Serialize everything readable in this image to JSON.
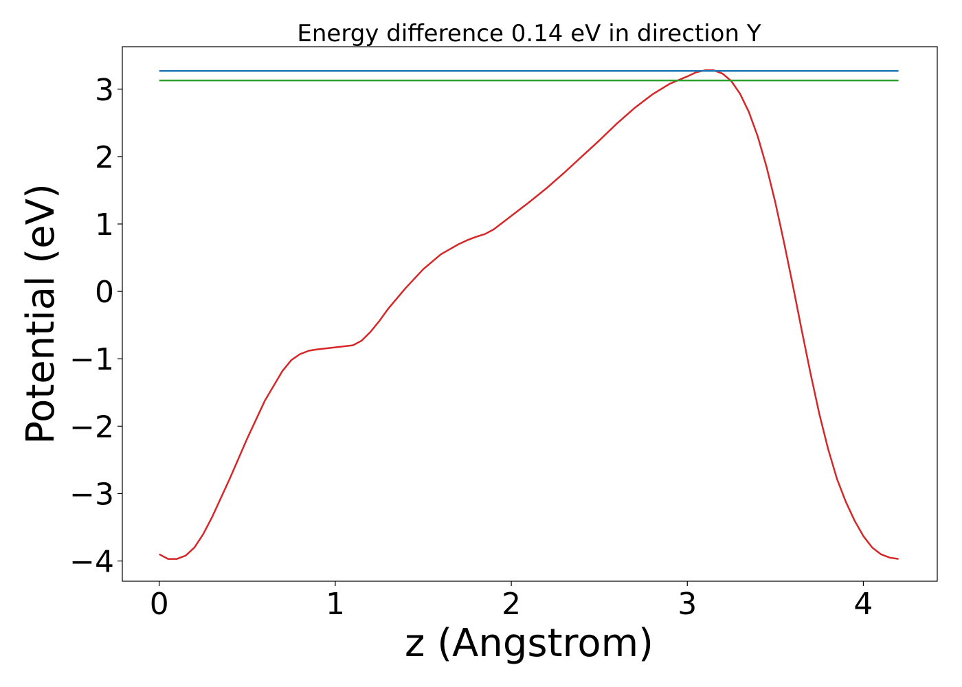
{
  "chart_data": {
    "type": "line",
    "title": "Energy difference 0.14 eV in direction Y",
    "xlabel": "z (Angstrom)",
    "ylabel": "Potential (eV)",
    "xlim": [
      -0.21,
      4.42
    ],
    "ylim": [
      -4.3,
      3.63
    ],
    "xticks": [
      0,
      1,
      2,
      3,
      4
    ],
    "xtick_labels": [
      "0",
      "1",
      "2",
      "3",
      "4"
    ],
    "yticks": [
      -4,
      -3,
      -2,
      -1,
      0,
      1,
      2,
      3
    ],
    "ytick_labels": [
      "−4",
      "−3",
      "−2",
      "−1",
      "0",
      "1",
      "2",
      "3"
    ],
    "grid": false,
    "series": [
      {
        "color": "#d62728",
        "x": [
          0.0,
          0.05,
          0.1,
          0.15,
          0.2,
          0.25,
          0.3,
          0.4,
          0.5,
          0.6,
          0.7,
          0.75,
          0.8,
          0.85,
          0.9,
          1.0,
          1.1,
          1.15,
          1.2,
          1.25,
          1.3,
          1.4,
          1.5,
          1.6,
          1.7,
          1.75,
          1.8,
          1.85,
          1.9,
          1.95,
          2.0,
          2.1,
          2.2,
          2.3,
          2.4,
          2.5,
          2.6,
          2.7,
          2.8,
          2.9,
          3.0,
          3.05,
          3.1,
          3.15,
          3.2,
          3.25,
          3.3,
          3.35,
          3.4,
          3.45,
          3.5,
          3.55,
          3.6,
          3.65,
          3.7,
          3.75,
          3.8,
          3.85,
          3.9,
          3.95,
          4.0,
          4.05,
          4.1,
          4.15,
          4.2
        ],
        "y": [
          -3.9,
          -3.97,
          -3.97,
          -3.92,
          -3.8,
          -3.6,
          -3.35,
          -2.78,
          -2.18,
          -1.62,
          -1.18,
          -1.02,
          -0.93,
          -0.88,
          -0.86,
          -0.83,
          -0.8,
          -0.73,
          -0.6,
          -0.44,
          -0.26,
          0.05,
          0.33,
          0.55,
          0.7,
          0.76,
          0.81,
          0.85,
          0.92,
          1.02,
          1.12,
          1.32,
          1.53,
          1.76,
          2.0,
          2.24,
          2.49,
          2.72,
          2.92,
          3.08,
          3.19,
          3.25,
          3.28,
          3.28,
          3.23,
          3.12,
          2.93,
          2.66,
          2.3,
          1.85,
          1.32,
          0.72,
          0.08,
          -0.58,
          -1.22,
          -1.82,
          -2.34,
          -2.78,
          -3.12,
          -3.4,
          -3.63,
          -3.8,
          -3.9,
          -3.95,
          -3.97
        ]
      },
      {
        "color": "#1f77b4",
        "x": [
          0.0,
          4.2
        ],
        "y": [
          3.27,
          3.27
        ]
      },
      {
        "color": "#2ca02c",
        "x": [
          0.0,
          4.2
        ],
        "y": [
          3.13,
          3.13
        ]
      }
    ]
  }
}
